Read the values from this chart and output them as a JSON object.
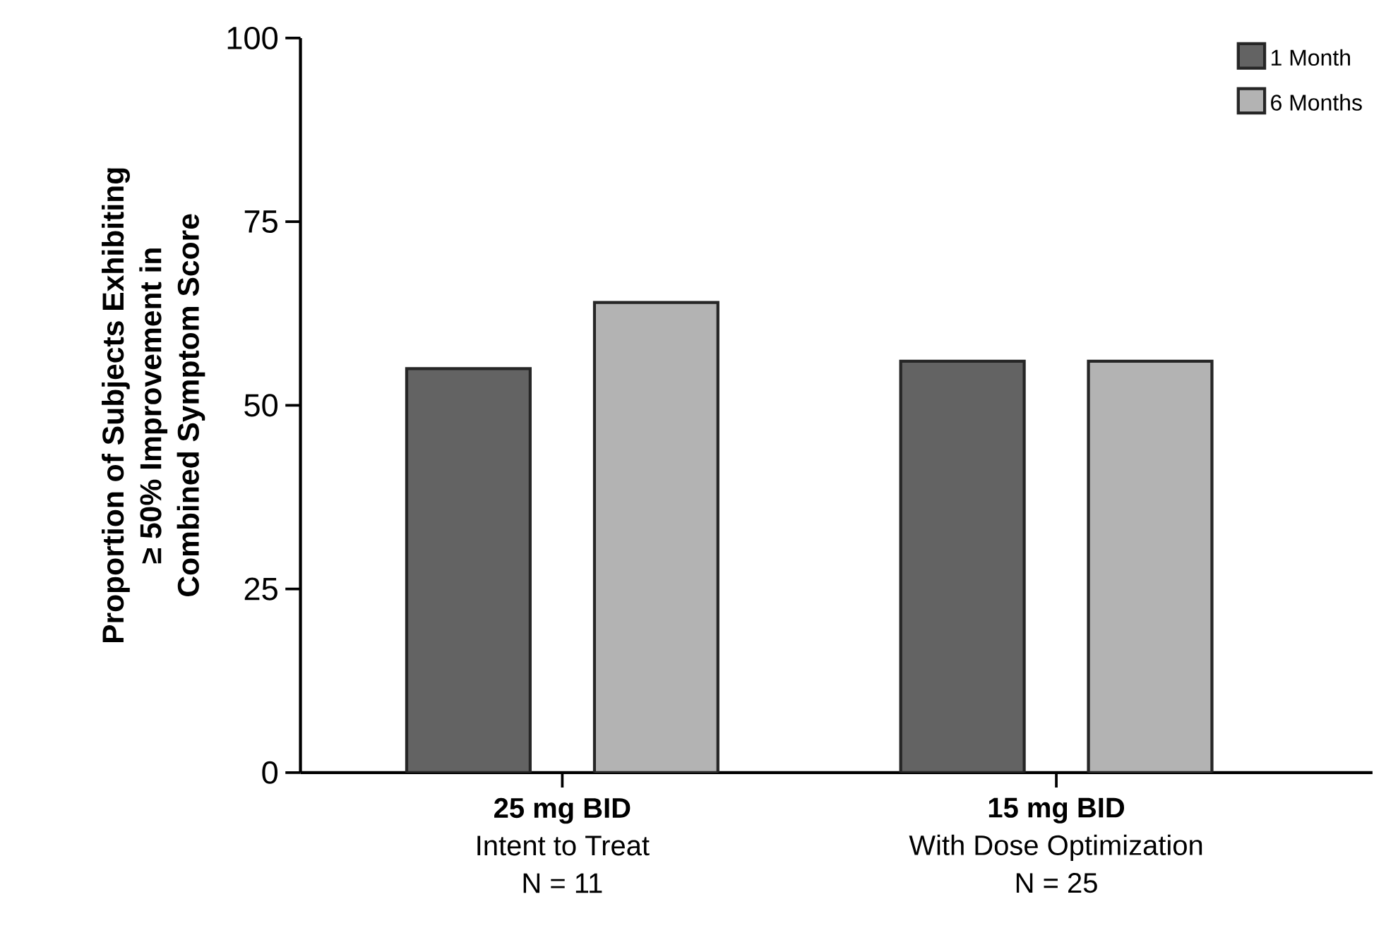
{
  "chart_data": {
    "type": "bar",
    "ylabel": "Proportion of Subjects Exhibiting\n≥ 50% Improvement in\nCombined Symptom Score",
    "categories": [
      "**25 mg BID**\nIntent to Treat\nN = 11",
      "**15 mg BID**\nWith Dose Optimization\nN = 25"
    ],
    "series": [
      {
        "name": "1 Month",
        "color": "#636363",
        "values": [
          55,
          56
        ]
      },
      {
        "name": "6 Months",
        "color": "#b3b3b3",
        "values": [
          64,
          56
        ]
      }
    ],
    "ylim": [
      0,
      100
    ],
    "yticks": [
      0,
      25,
      50,
      75,
      100
    ],
    "grid": false,
    "legend": "top right"
  }
}
